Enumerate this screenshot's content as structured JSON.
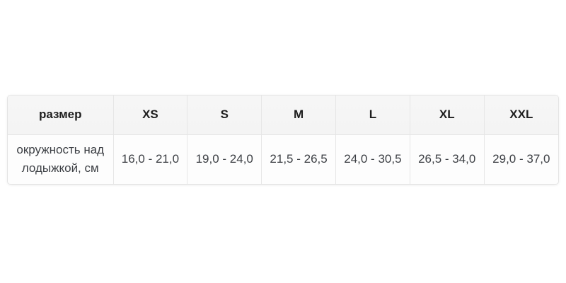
{
  "chart_data": {
    "type": "table",
    "title": "",
    "columns": [
      "размер",
      "XS",
      "S",
      "M",
      "L",
      "XL",
      "XXL"
    ],
    "rows": [
      [
        "окружность над лодыжкой, см",
        "16,0 - 21,0",
        "19,0 - 24,0",
        "21,5 - 26,5",
        "24,0 - 30,5",
        "26,5 - 34,0",
        "29,0 - 37,0"
      ]
    ],
    "layout": {
      "header_background": "#f5f5f5",
      "body_background": "#fdfdfd",
      "border_color": "#e4e4e4",
      "header_text_color": "#1e1e1e",
      "body_text_color": "#3d4045",
      "grid": "on"
    }
  }
}
